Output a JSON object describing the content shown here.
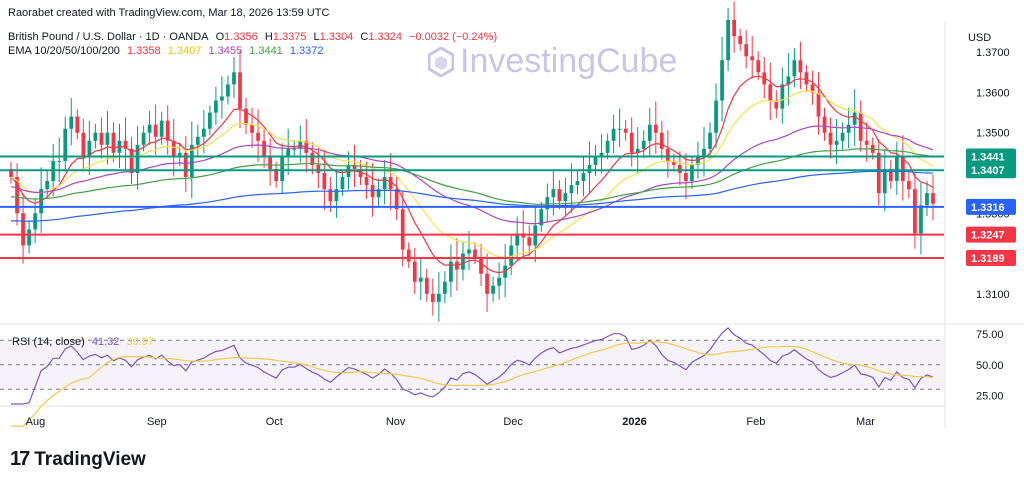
{
  "credit": "Raorabet created with TradingView.com, Mar 18, 2026 13:59 UTC",
  "symbol_title": "British Pound / U.S. Dollar · 1D · OANDA",
  "ohlc": {
    "o_label": "O",
    "o": "1.3356",
    "h_label": "H",
    "h": "1.3375",
    "l_label": "L",
    "l": "1.3304",
    "c_label": "C",
    "c": "1.3324",
    "change": "−0.0032 (−0.24%)"
  },
  "ema_legend": {
    "label": "EMA 10/20/50/100/200",
    "values": [
      "1.3358",
      "1.3407",
      "1.3455",
      "1.3441",
      "1.3372"
    ],
    "colors": [
      "#f23645",
      "#f7e24a",
      "#ab47bc",
      "#43a047",
      "#2962ff"
    ]
  },
  "watermark": "InvestingCube",
  "branding": "TradingView",
  "currency": "USD",
  "chart_data": [
    {
      "type": "candlestick",
      "title": "GBP/USD Daily",
      "y_axis_ticks": [
        1.31,
        1.32,
        1.33,
        1.34,
        1.35,
        1.36,
        1.37
      ],
      "y_axis_labels": [
        "1.3100",
        "1.3200",
        "1.3300",
        "1.3400",
        "1.3500",
        "1.3600",
        "1.3700"
      ],
      "ylim": [
        1.303,
        1.3775
      ],
      "x_month_labels": [
        {
          "label": "Aug",
          "date": "2025-08-01"
        },
        {
          "label": "Sep",
          "date": "2025-09-01"
        },
        {
          "label": "Oct",
          "date": "2025-10-01"
        },
        {
          "label": "Nov",
          "date": "2025-11-01"
        },
        {
          "label": "Dec",
          "date": "2025-12-01"
        },
        {
          "label": "2026",
          "date": "2026-01-01"
        },
        {
          "label": "Feb",
          "date": "2026-02-01"
        },
        {
          "label": "Mar",
          "date": "2026-03-01"
        }
      ],
      "horizontal_levels": [
        {
          "value": 1.3441,
          "label": "1.3441",
          "color": "#089981"
        },
        {
          "value": 1.3407,
          "label": "1.3407",
          "color": "#089981"
        },
        {
          "value": 1.3316,
          "label": "1.3316",
          "color": "#2962ff"
        },
        {
          "value": 1.3247,
          "label": "1.3247",
          "color": "#f23645"
        },
        {
          "value": 1.3189,
          "label": "1.3189",
          "color": "#f23645"
        }
      ],
      "closes": [
        1.339,
        1.33,
        1.322,
        1.326,
        1.33,
        1.336,
        1.338,
        1.343,
        1.343,
        1.351,
        1.354,
        1.35,
        1.344,
        1.348,
        1.35,
        1.347,
        1.35,
        1.345,
        1.348,
        1.346,
        1.34,
        1.347,
        1.35,
        1.352,
        1.349,
        1.353,
        1.348,
        1.344,
        1.345,
        1.339,
        1.347,
        1.349,
        1.351,
        1.355,
        1.358,
        1.359,
        1.362,
        1.365,
        1.356,
        1.352,
        1.35,
        1.348,
        1.344,
        1.341,
        1.338,
        1.344,
        1.346,
        1.346,
        1.348,
        1.345,
        1.342,
        1.34,
        1.336,
        1.333,
        1.336,
        1.339,
        1.342,
        1.341,
        1.339,
        1.337,
        1.334,
        1.336,
        1.339,
        1.336,
        1.331,
        1.321,
        1.318,
        1.313,
        1.314,
        1.31,
        1.308,
        1.31,
        1.313,
        1.318,
        1.316,
        1.32,
        1.321,
        1.319,
        1.315,
        1.31,
        1.312,
        1.314,
        1.317,
        1.322,
        1.325,
        1.324,
        1.322,
        1.327,
        1.331,
        1.334,
        1.336,
        1.333,
        1.335,
        1.337,
        1.338,
        1.34,
        1.342,
        1.344,
        1.345,
        1.348,
        1.351,
        1.351,
        1.35,
        1.345,
        1.346,
        1.348,
        1.352,
        1.35,
        1.346,
        1.343,
        1.342,
        1.34,
        1.338,
        1.342,
        1.344,
        1.346,
        1.35,
        1.358,
        1.368,
        1.378,
        1.374,
        1.372,
        1.369,
        1.368,
        1.365,
        1.362,
        1.358,
        1.356,
        1.362,
        1.364,
        1.368,
        1.365,
        1.362,
        1.36,
        1.354,
        1.35,
        1.347,
        1.348,
        1.35,
        1.352,
        1.355,
        1.348,
        1.347,
        1.345,
        1.335,
        1.341,
        1.338,
        1.344,
        1.338,
        1.336,
        1.325,
        1.332,
        1.335,
        1.3324
      ],
      "series_labels": [
        "EMA 10",
        "EMA 20",
        "EMA 50",
        "EMA 100",
        "EMA 200"
      ]
    },
    {
      "type": "line",
      "title": "RSI (14, close)",
      "values_legend": [
        "41.32",
        "39.97"
      ],
      "y_axis_labels": [
        "75.00",
        "50.00",
        "25.00"
      ],
      "y_axis_ticks": [
        75,
        50,
        25
      ],
      "band": [
        70,
        30
      ],
      "ylim": [
        18,
        80
      ]
    }
  ]
}
